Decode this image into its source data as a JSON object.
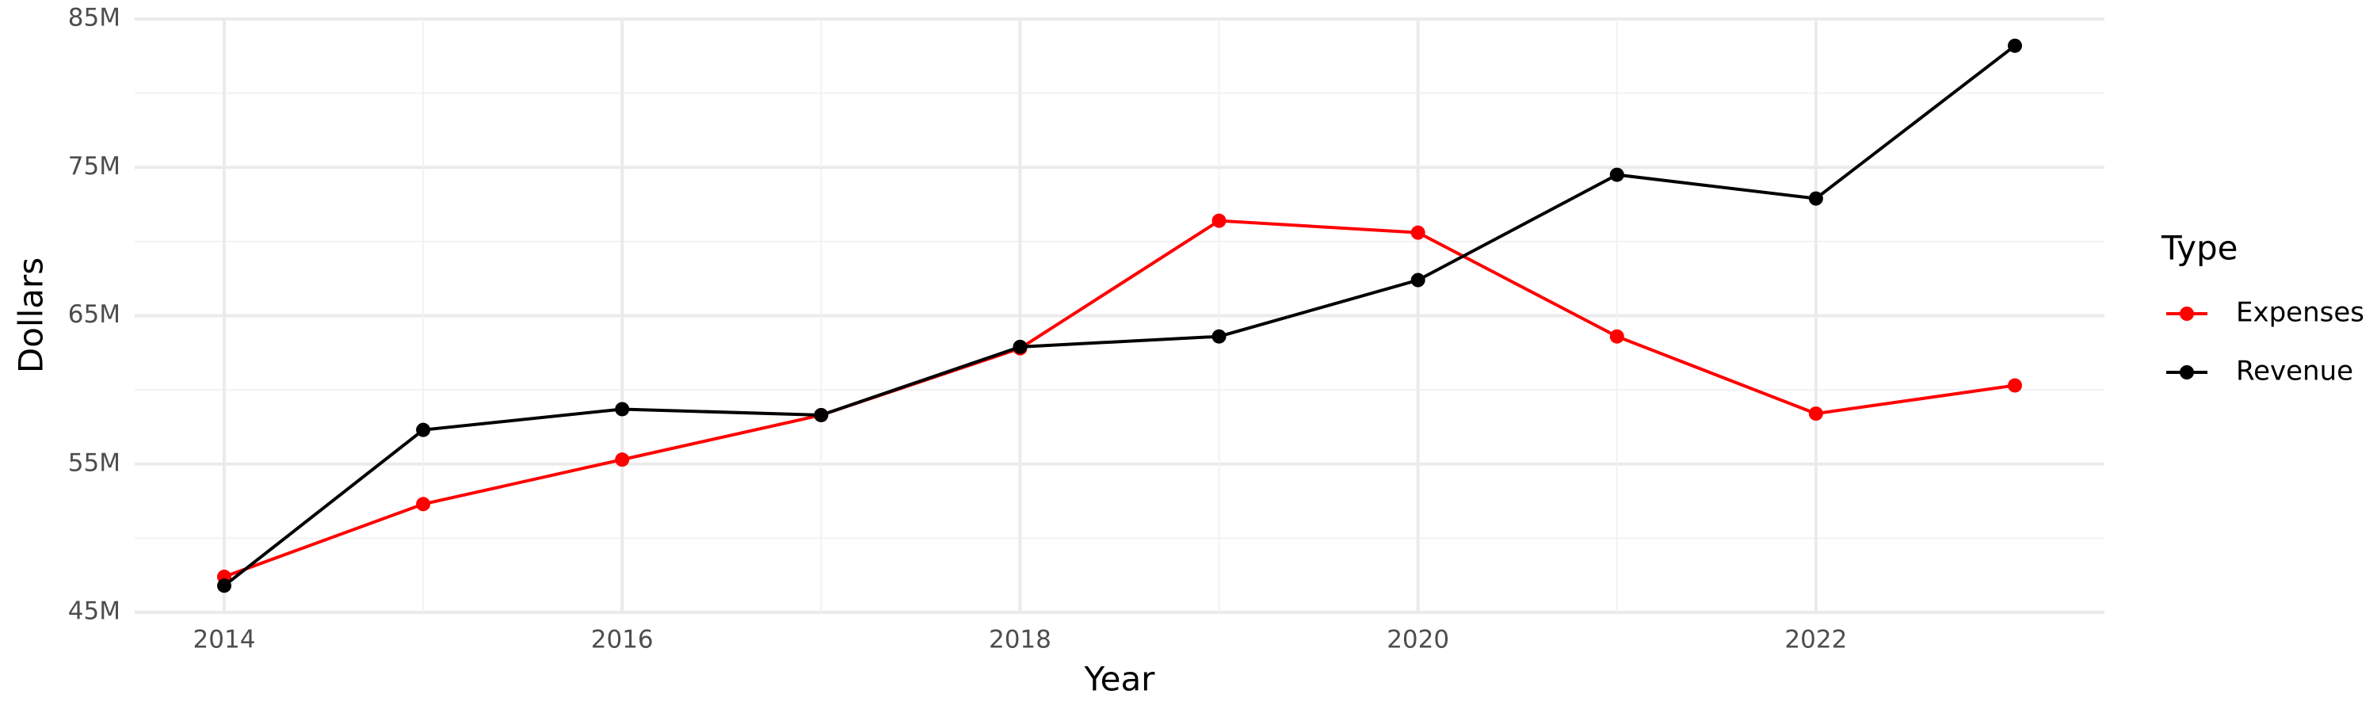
{
  "chart_data": {
    "type": "line",
    "xlabel": "Year",
    "ylabel": "Dollars",
    "legend_title": "Type",
    "x": [
      2014,
      2015,
      2016,
      2017,
      2018,
      2019,
      2020,
      2021,
      2022,
      2023
    ],
    "series": [
      {
        "name": "Expenses",
        "color": "#ff0000",
        "values": [
          47400000,
          52300000,
          55300000,
          58300000,
          62800000,
          71400000,
          70600000,
          63600000,
          58400000,
          60300000
        ]
      },
      {
        "name": "Revenue",
        "color": "#000000",
        "values": [
          46800000,
          57300000,
          58700000,
          58300000,
          62900000,
          63600000,
          67400000,
          74500000,
          72900000,
          83200000
        ]
      }
    ],
    "xlim": [
      2013.55,
      2023.45
    ],
    "xticks": [
      2014,
      2016,
      2018,
      2020,
      2022
    ],
    "ylim": [
      45000000,
      85000000
    ],
    "yticks": [
      {
        "value": 45000000,
        "label": "45M"
      },
      {
        "value": 55000000,
        "label": "55M"
      },
      {
        "value": 65000000,
        "label": "65M"
      },
      {
        "value": 75000000,
        "label": "75M"
      },
      {
        "value": 85000000,
        "label": "85M"
      }
    ],
    "grid": true,
    "legend": "right"
  }
}
